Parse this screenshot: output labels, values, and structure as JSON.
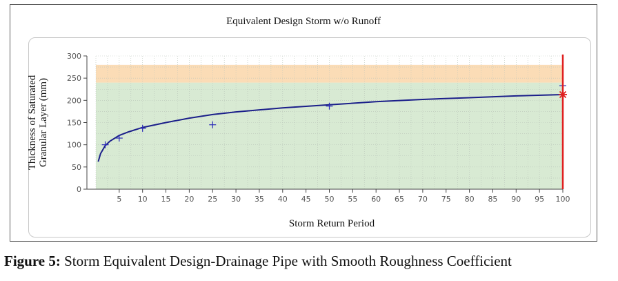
{
  "figure": {
    "caption_label": "Figure 5:",
    "caption_text": " Storm Equivalent Design-Drainage Pipe with Smooth Roughness Coefficient"
  },
  "chart_data": {
    "type": "line",
    "title": "Equivalent Design Storm w/o Runoff",
    "xlabel": "Storm Return Period",
    "ylabel_line1": "Thickness of Saturated",
    "ylabel_line2": "Granular Layer (mm)",
    "xlim": [
      0,
      100
    ],
    "ylim": [
      0,
      300
    ],
    "x_ticks": [
      5,
      10,
      15,
      20,
      25,
      30,
      35,
      40,
      45,
      50,
      55,
      60,
      65,
      70,
      75,
      80,
      85,
      90,
      95,
      100
    ],
    "y_ticks": [
      0,
      50,
      100,
      150,
      200,
      250,
      300
    ],
    "grid": true,
    "bands": [
      {
        "from": 0,
        "to": 240,
        "color": "#d8ead3"
      },
      {
        "from": 240,
        "to": 280,
        "color": "#fbdcb6"
      }
    ],
    "curve": {
      "color": "#1b1f8a",
      "x": [
        0.5,
        1,
        2,
        3,
        5,
        7,
        10,
        15,
        20,
        25,
        30,
        40,
        50,
        60,
        70,
        80,
        90,
        100
      ],
      "y": [
        62,
        80,
        98,
        108,
        121,
        129,
        139,
        150,
        160,
        168,
        174,
        183,
        190,
        197,
        202,
        206,
        210,
        213
      ]
    },
    "points": {
      "color": "#2a2ab8",
      "x": [
        2,
        5,
        10,
        25,
        50,
        100
      ],
      "y": [
        100,
        115,
        137,
        145,
        187,
        233
      ]
    },
    "marker_line": {
      "x": 100,
      "y": 213,
      "color": "#e02020"
    }
  }
}
